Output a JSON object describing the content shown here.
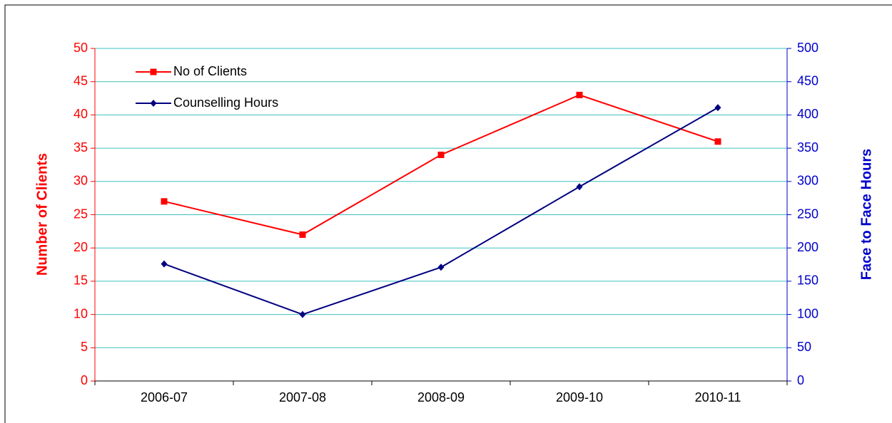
{
  "chart_data": {
    "type": "line",
    "categories": [
      "2006-07",
      "2007-08",
      "2008-09",
      "2009-10",
      "2010-11"
    ],
    "series": [
      {
        "name": "No of Clients",
        "color": "#ff0000",
        "marker": "square",
        "values": [
          27,
          22,
          34,
          43,
          36
        ]
      },
      {
        "name": "Counselling Hours",
        "color": "#000080",
        "marker": "diamond",
        "axis": "y2",
        "values": [
          176,
          100,
          171,
          292,
          411
        ]
      }
    ],
    "ylabel": "Number of Clients",
    "y2label": "Face to Face Hours",
    "ylim": [
      0,
      50
    ],
    "yticks": [
      0,
      5,
      10,
      15,
      20,
      25,
      30,
      35,
      40,
      45,
      50
    ],
    "y2lim": [
      0,
      500
    ],
    "y2ticks": [
      0,
      50,
      100,
      150,
      200,
      250,
      300,
      350,
      400,
      450,
      500
    ],
    "ycolor": "#ff0000",
    "y2color": "#0000cc",
    "gridcolor": "#40c0c0",
    "grid": true,
    "legend": "top-left"
  }
}
